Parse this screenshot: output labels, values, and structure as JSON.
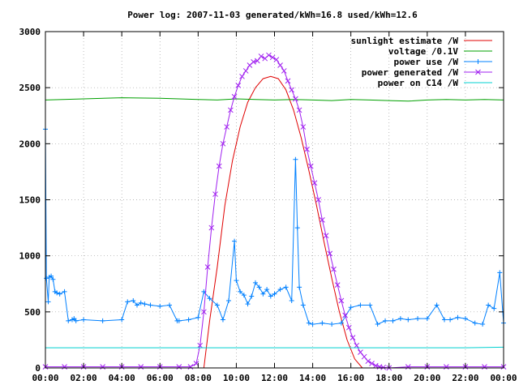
{
  "chart_data": {
    "type": "line",
    "title": "Power log: 2007-11-03 generated/kWh=16.8 used/kWh=12.6",
    "xlabel": "",
    "ylabel": "",
    "grid": true,
    "legend_position": "top-right",
    "ylim": [
      0,
      3000
    ],
    "xlim_hours": [
      0,
      24
    ],
    "y_ticks": [
      "0",
      "500",
      "1000",
      "1500",
      "2000",
      "2500",
      "3000"
    ],
    "x_ticks": [
      "00:00",
      "02:00",
      "04:00",
      "06:00",
      "08:00",
      "10:00",
      "12:00",
      "14:00",
      "16:00",
      "18:00",
      "20:00",
      "22:00",
      "00:00"
    ],
    "series": [
      {
        "name": "sunlight estimate /W",
        "color": "#e00000",
        "marker": "none",
        "x_hours": [
          8.3,
          8.6,
          9.0,
          9.4,
          9.8,
          10.2,
          10.6,
          11.0,
          11.4,
          11.8,
          12.2,
          12.6,
          13.0,
          13.4,
          13.8,
          14.2,
          14.6,
          15.0,
          15.4,
          15.8,
          16.2,
          16.6
        ],
        "values": [
          0,
          420,
          900,
          1450,
          1850,
          2150,
          2370,
          2500,
          2580,
          2600,
          2580,
          2480,
          2300,
          2050,
          1760,
          1450,
          1120,
          800,
          500,
          250,
          80,
          0
        ]
      },
      {
        "name": "voltage /0.1V",
        "color": "#00a000",
        "marker": "none",
        "x_hours": [
          0,
          2,
          4,
          6,
          8,
          9,
          10,
          11,
          12,
          13,
          14,
          15,
          16,
          17,
          18,
          19,
          20,
          21,
          22,
          23,
          24
        ],
        "values": [
          2390,
          2400,
          2410,
          2405,
          2395,
          2390,
          2400,
          2395,
          2390,
          2395,
          2390,
          2385,
          2395,
          2390,
          2385,
          2380,
          2390,
          2395,
          2390,
          2395,
          2390
        ]
      },
      {
        "name": "power use /W",
        "color": "#0080ff",
        "marker": "plus",
        "x_hours": [
          0.0,
          0.05,
          0.15,
          0.2,
          0.3,
          0.4,
          0.5,
          0.6,
          0.75,
          1.0,
          1.2,
          1.4,
          1.5,
          1.6,
          2.0,
          3.0,
          4.0,
          4.3,
          4.6,
          4.8,
          5.0,
          5.2,
          5.5,
          6.0,
          6.5,
          6.9,
          7.0,
          7.5,
          8.0,
          8.3,
          8.6,
          9.0,
          9.3,
          9.6,
          9.9,
          10.0,
          10.2,
          10.4,
          10.6,
          10.8,
          11.0,
          11.2,
          11.4,
          11.6,
          11.8,
          12.0,
          12.3,
          12.6,
          12.9,
          13.1,
          13.2,
          13.3,
          13.5,
          13.8,
          14.0,
          14.5,
          15.0,
          15.5,
          16.0,
          16.5,
          17.0,
          17.4,
          17.8,
          18.2,
          18.6,
          19.0,
          19.5,
          20.0,
          20.5,
          20.9,
          21.2,
          21.6,
          22.0,
          22.5,
          22.9,
          23.2,
          23.5,
          23.8,
          24.0
        ],
        "values": [
          2130,
          800,
          590,
          810,
          820,
          790,
          680,
          670,
          660,
          680,
          420,
          430,
          440,
          420,
          430,
          420,
          430,
          590,
          600,
          560,
          580,
          570,
          560,
          550,
          560,
          420,
          420,
          430,
          450,
          680,
          620,
          560,
          430,
          600,
          1130,
          780,
          680,
          650,
          570,
          640,
          760,
          720,
          660,
          700,
          640,
          660,
          700,
          720,
          600,
          1860,
          1250,
          720,
          560,
          400,
          390,
          400,
          390,
          400,
          540,
          560,
          560,
          390,
          420,
          420,
          440,
          430,
          440,
          440,
          560,
          430,
          430,
          450,
          440,
          400,
          390,
          560,
          530,
          850,
          400
        ]
      },
      {
        "name": "power generated /W",
        "color": "#a020f0",
        "marker": "cross",
        "x_hours": [
          0,
          1,
          2,
          3,
          4,
          5,
          6,
          7,
          7.6,
          7.9,
          8.1,
          8.3,
          8.5,
          8.7,
          8.9,
          9.1,
          9.3,
          9.5,
          9.7,
          9.9,
          10.1,
          10.3,
          10.5,
          10.7,
          10.9,
          11.1,
          11.3,
          11.5,
          11.7,
          11.9,
          12.1,
          12.3,
          12.5,
          12.7,
          12.9,
          13.1,
          13.3,
          13.5,
          13.7,
          13.9,
          14.1,
          14.3,
          14.5,
          14.7,
          14.9,
          15.1,
          15.3,
          15.5,
          15.7,
          15.9,
          16.1,
          16.3,
          16.5,
          16.7,
          16.9,
          17.1,
          17.3,
          17.5,
          17.7,
          18.0,
          19,
          20,
          21,
          22,
          23,
          24
        ],
        "values": [
          10,
          10,
          10,
          10,
          10,
          10,
          10,
          10,
          10,
          40,
          200,
          500,
          900,
          1250,
          1550,
          1800,
          2000,
          2150,
          2300,
          2420,
          2520,
          2600,
          2650,
          2700,
          2730,
          2740,
          2780,
          2760,
          2790,
          2770,
          2750,
          2700,
          2650,
          2560,
          2480,
          2400,
          2300,
          2150,
          1950,
          1800,
          1650,
          1500,
          1320,
          1180,
          1020,
          880,
          740,
          600,
          470,
          360,
          270,
          200,
          140,
          100,
          60,
          40,
          20,
          10,
          5,
          0,
          10,
          10,
          10,
          10,
          10,
          10
        ]
      },
      {
        "name": "power on C14 /W",
        "color": "#00d0d0",
        "marker": "none",
        "x_hours": [
          0,
          2,
          4,
          6,
          8,
          10,
          12,
          14,
          16,
          18,
          20,
          22,
          24
        ],
        "values": [
          180,
          180,
          180,
          180,
          180,
          180,
          180,
          180,
          180,
          180,
          180,
          180,
          185
        ]
      }
    ]
  }
}
